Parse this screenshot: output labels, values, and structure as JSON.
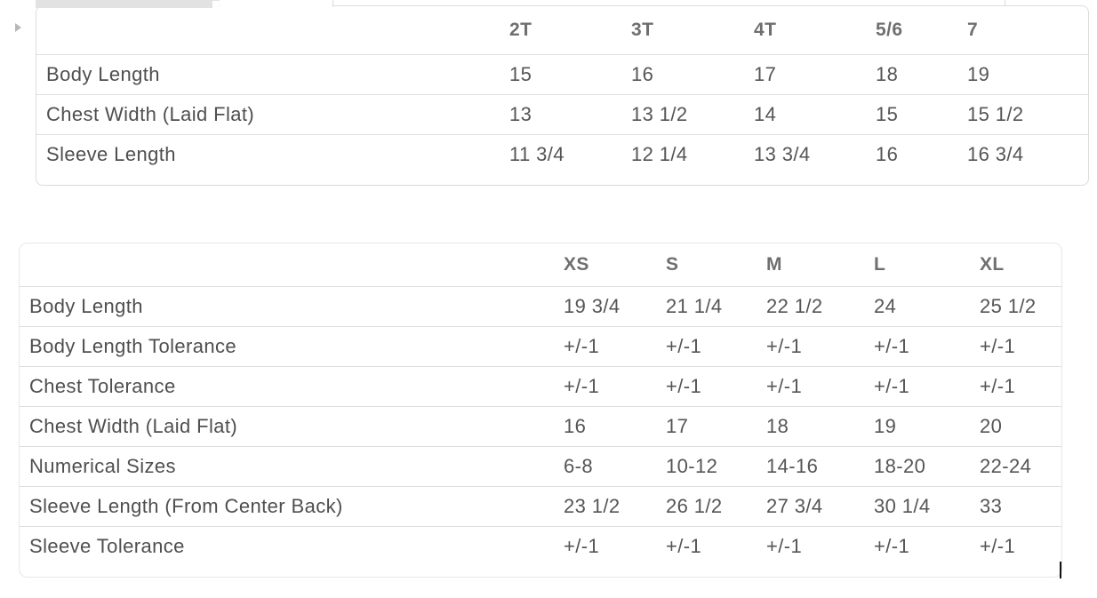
{
  "colors": {
    "panel_border": "#dcdcdc",
    "row_divider": "#dedede",
    "header_text": "#6f6f6f",
    "label_text": "#4f4f4f",
    "value_text": "#555555",
    "tab_gray": "#e2e2e2",
    "triangle_gray": "#b7b7b7",
    "cursor": "#111111"
  },
  "icons": {
    "disclosure_triangle": "right-pointing-triangle"
  },
  "toddler_chart": {
    "corner_label": "",
    "columns": [
      "2T",
      "3T",
      "4T",
      "5/6",
      "7"
    ],
    "rows": [
      {
        "label": "Body Length",
        "values": [
          "15",
          "16",
          "17",
          "18",
          "19"
        ]
      },
      {
        "label": "Chest Width (Laid Flat)",
        "values": [
          "13",
          "13 1/2",
          "14",
          "15",
          "15 1/2"
        ]
      },
      {
        "label": "Sleeve Length",
        "values": [
          "11 3/4",
          "12 1/4",
          "13 3/4",
          "16",
          "16 3/4"
        ]
      }
    ]
  },
  "youth_chart": {
    "corner_label": "",
    "columns": [
      "XS",
      "S",
      "M",
      "L",
      "XL"
    ],
    "rows": [
      {
        "label": "Body Length",
        "values": [
          "19 3/4",
          "21 1/4",
          "22 1/2",
          "24",
          "25 1/2"
        ]
      },
      {
        "label": "Body Length Tolerance",
        "values": [
          "+/-1",
          "+/-1",
          "+/-1",
          "+/-1",
          "+/-1"
        ]
      },
      {
        "label": "Chest Tolerance",
        "values": [
          "+/-1",
          "+/-1",
          "+/-1",
          "+/-1",
          "+/-1"
        ]
      },
      {
        "label": "Chest Width (Laid Flat)",
        "values": [
          "16",
          "17",
          "18",
          "19",
          "20"
        ]
      },
      {
        "label": "Numerical Sizes",
        "values": [
          "6-8",
          "10-12",
          "14-16",
          "18-20",
          "22-24"
        ]
      },
      {
        "label": "Sleeve Length (From Center Back)",
        "values": [
          "23 1/2",
          "26 1/2",
          "27 3/4",
          "30 1/4",
          "33"
        ]
      },
      {
        "label": "Sleeve Tolerance",
        "values": [
          "+/-1",
          "+/-1",
          "+/-1",
          "+/-1",
          "+/-1"
        ]
      }
    ]
  }
}
